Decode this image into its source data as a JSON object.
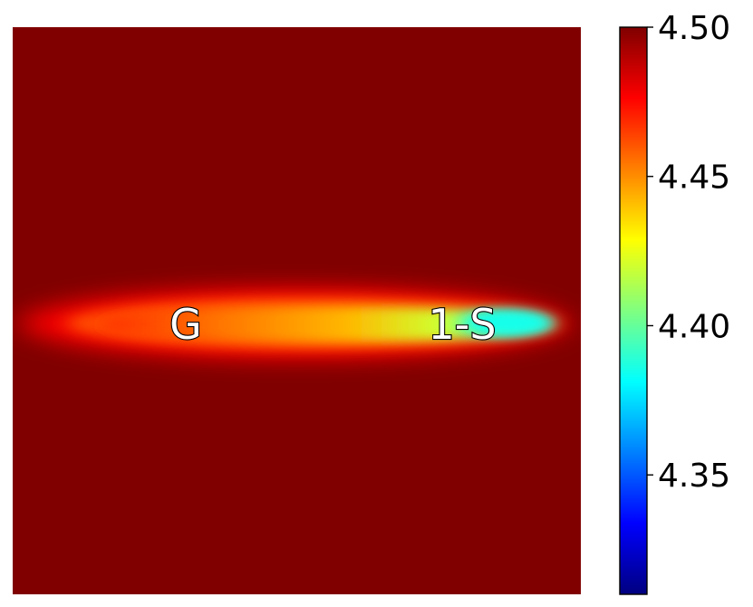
{
  "chart_data": {
    "type": "heatmap",
    "title": "",
    "xlabel": "",
    "ylabel": "",
    "colormap": "jet",
    "background_value": 4.5,
    "colorbar": {
      "vmin": 4.31,
      "vmax": 4.5,
      "ticks": [
        "4.35",
        "4.40",
        "4.45",
        "4.50"
      ],
      "tick_values": [
        4.35,
        4.4,
        4.45,
        4.5
      ]
    },
    "annotations": [
      {
        "text": "G",
        "value": 4.455
      },
      {
        "text": "1-S",
        "value": 4.38
      }
    ]
  }
}
